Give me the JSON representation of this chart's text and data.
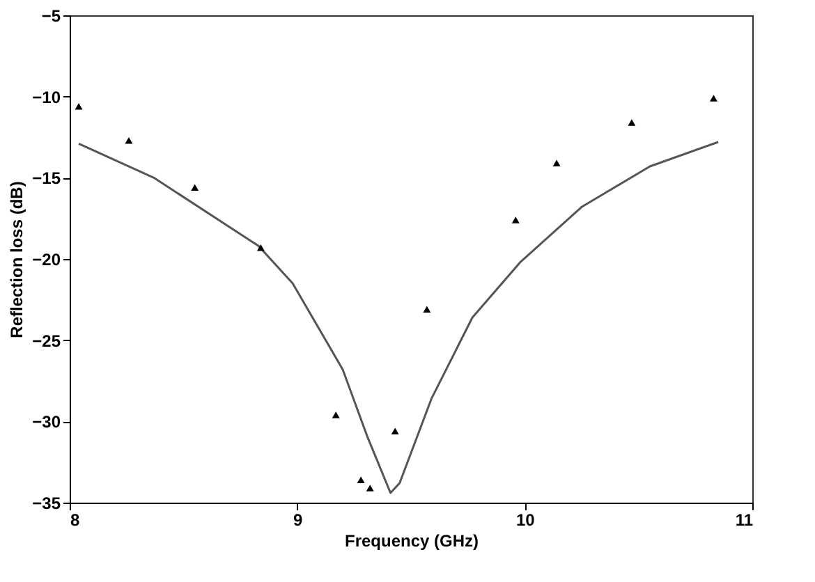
{
  "chart_data": {
    "type": "line",
    "xlabel": "Frequency (GHz)",
    "ylabel": "Reflection loss (dB)",
    "xlim": [
      8,
      11
    ],
    "xticks": [
      8,
      9,
      10,
      11
    ],
    "ylim": [
      -35,
      -5
    ],
    "yticks": [
      -35,
      -30,
      -25,
      -20,
      -15,
      -10,
      -5
    ],
    "grid": false,
    "series": [
      {
        "color": "#555555",
        "line_style": "solid",
        "x": [
          8.04,
          8.37,
          8.71,
          8.83,
          8.98,
          9.2,
          9.31,
          9.41,
          9.45,
          9.59,
          9.77,
          9.98,
          10.25,
          10.55,
          10.85
        ],
        "values": [
          -12.9,
          -15.0,
          -18.1,
          -19.2,
          -21.5,
          -26.8,
          -31.0,
          -34.4,
          -33.8,
          -28.6,
          -23.6,
          -20.2,
          -16.8,
          -14.3,
          -12.8
        ]
      },
      {
        "type": "scatter",
        "color": "#000000",
        "marker": "triangle",
        "x": [
          8.04,
          8.26,
          8.55,
          8.84,
          9.17,
          9.28,
          9.32,
          9.43,
          9.57,
          9.96,
          10.14,
          10.47,
          10.83
        ],
        "values": [
          -10.6,
          -12.7,
          -15.6,
          -19.3,
          -29.6,
          -33.6,
          -34.1,
          -30.6,
          -23.1,
          -17.6,
          -14.1,
          -11.6,
          -10.1
        ]
      }
    ]
  }
}
